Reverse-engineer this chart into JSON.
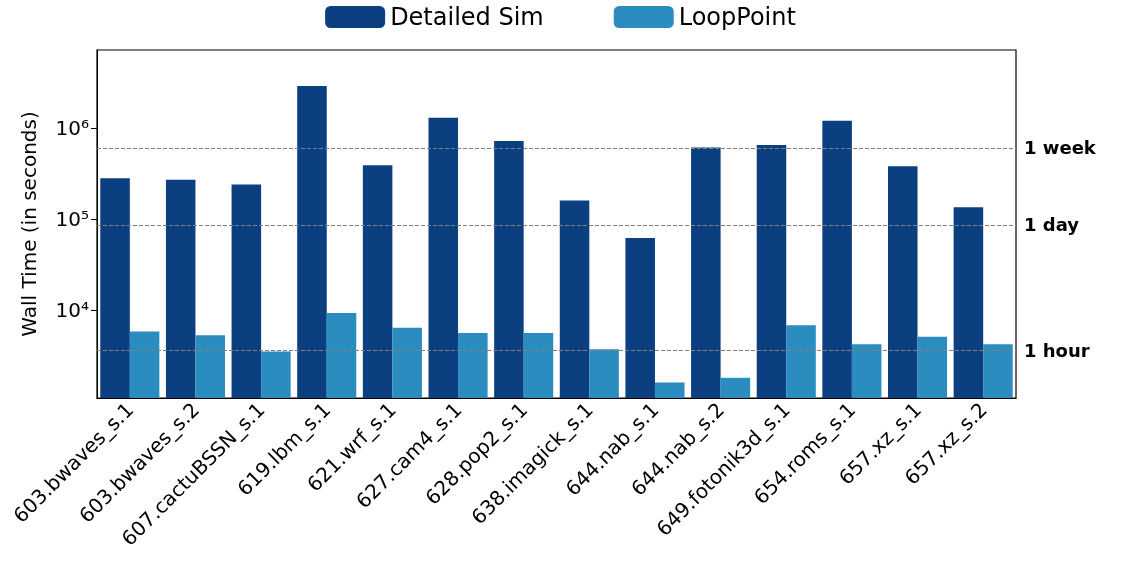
{
  "chart_data": {
    "type": "bar",
    "ylabel": "Wall Time (in seconds)",
    "categories": [
      "603.bwaves_s.1",
      "603.bwaves_s.2",
      "607.cactuBSSN_s.1",
      "619.lbm_s.1",
      "621.wrf_s.1",
      "627.cam4_s.1",
      "628.pop2_s.1",
      "638.imagick_s.1",
      "644.nab_s.1",
      "644.nab_s.2",
      "649.fotonik3d_s.1",
      "654.roms_s.1",
      "657.xz_s.1",
      "657.xz_s.2"
    ],
    "series": [
      {
        "name": "Detailed Sim",
        "color": "#0b3f80",
        "values": [
          280000,
          270000,
          240000,
          2900000,
          390000,
          1300000,
          720000,
          160000,
          62000,
          610000,
          650000,
          1200000,
          380000,
          135000
        ]
      },
      {
        "name": "LoopPoint",
        "color": "#2b8cbf",
        "values": [
          5800,
          5300,
          3500,
          9300,
          6400,
          5600,
          5600,
          3700,
          1600,
          1800,
          6800,
          4200,
          5100,
          4200
        ]
      }
    ],
    "log": "y",
    "ylim": [
      1080,
      7200000
    ],
    "yticks": [
      {
        "value": 10000,
        "label": "10⁴"
      },
      {
        "value": 100000,
        "label": "10⁵"
      },
      {
        "value": 1000000,
        "label": "10⁶"
      }
    ],
    "ref_lines": [
      {
        "axis": "y",
        "value": 604800,
        "label": "1 week",
        "color": "#808080",
        "line_style": "dashed"
      },
      {
        "axis": "y",
        "value": 86400,
        "label": "1 day",
        "color": "#808080",
        "line_style": "dashed"
      },
      {
        "axis": "y",
        "value": 3600,
        "label": "1 hour",
        "color": "#808080",
        "line_style": "dashed"
      }
    ],
    "legend": "top",
    "grid": false
  }
}
